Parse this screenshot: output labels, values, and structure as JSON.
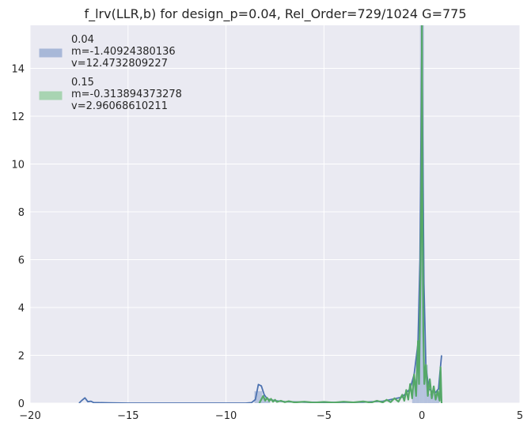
{
  "chart_data": {
    "type": "line",
    "title": "f_lrv(LLR,b) for design_p=0.04, Rel_Order=729/1024 G=775",
    "xlabel": "",
    "ylabel": "",
    "xlim": [
      -20,
      5
    ],
    "ylim": [
      0,
      15.8
    ],
    "xticks": [
      -20,
      -15,
      -10,
      -5,
      0,
      5
    ],
    "xtick_labels": [
      "−20",
      "−15",
      "−10",
      "−5",
      "0",
      "5"
    ],
    "yticks": [
      0,
      2,
      4,
      6,
      8,
      10,
      12,
      14
    ],
    "ytick_labels": [
      "0",
      "2",
      "4",
      "6",
      "8",
      "10",
      "12",
      "14"
    ],
    "grid": true,
    "legend_position": "top-left",
    "background": "#EAEAF2",
    "series": [
      {
        "name": "0.04",
        "label_lines": [
          "0.04",
          " m=-1.40924380136",
          " v=12.4732809227"
        ],
        "color": "#4C72B0",
        "patch_color": "#A8B8D8",
        "line_points": [
          [
            -17.5,
            0.0
          ],
          [
            -17.35,
            0.12
          ],
          [
            -17.2,
            0.22
          ],
          [
            -17.05,
            0.06
          ],
          [
            -16.9,
            0.08
          ],
          [
            -16.75,
            0.02
          ],
          [
            -16.5,
            0.02
          ],
          [
            -16.0,
            0.01
          ],
          [
            -15.0,
            0.0
          ],
          [
            -12.0,
            0.0
          ],
          [
            -9.0,
            0.0
          ],
          [
            -8.7,
            0.02
          ],
          [
            -8.5,
            0.15
          ],
          [
            -8.35,
            0.78
          ],
          [
            -8.2,
            0.72
          ],
          [
            -8.05,
            0.35
          ],
          [
            -7.9,
            0.18
          ],
          [
            -7.5,
            0.1
          ],
          [
            -7.0,
            0.06
          ],
          [
            -6.0,
            0.04
          ],
          [
            -5.0,
            0.03
          ],
          [
            -3.0,
            0.04
          ],
          [
            -2.0,
            0.08
          ],
          [
            -1.0,
            0.25
          ],
          [
            -0.6,
            0.6
          ],
          [
            -0.4,
            1.2
          ],
          [
            -0.2,
            2.5
          ],
          [
            -0.1,
            6.0
          ],
          [
            -0.03,
            13.0
          ],
          [
            0.0,
            15.8
          ],
          [
            0.03,
            12.0
          ],
          [
            0.1,
            5.0
          ],
          [
            0.2,
            1.5
          ],
          [
            0.35,
            0.6
          ],
          [
            0.5,
            0.5
          ],
          [
            0.7,
            0.45
          ],
          [
            0.85,
            0.6
          ],
          [
            0.92,
            1.3
          ],
          [
            1.0,
            2.0
          ]
        ],
        "bars": [
          [
            -8.45,
            0.5
          ],
          [
            -8.25,
            0.5
          ],
          [
            -8.05,
            0.2
          ],
          [
            -7.85,
            0.1
          ],
          [
            -0.4,
            1.0
          ],
          [
            -0.2,
            2.0
          ],
          [
            0.0,
            15.8
          ],
          [
            0.2,
            1.6
          ],
          [
            0.4,
            0.4
          ],
          [
            0.6,
            0.5
          ],
          [
            0.8,
            0.5
          ]
        ]
      },
      {
        "name": "0.15",
        "label_lines": [
          "0.15",
          " m=-0.313894373278",
          " v=2.96068610211"
        ],
        "color": "#55A868",
        "patch_color": "#A8D4B2",
        "line_points": [
          [
            -8.3,
            0.0
          ],
          [
            -8.1,
            0.3
          ],
          [
            -8.0,
            0.1
          ],
          [
            -7.9,
            0.22
          ],
          [
            -7.8,
            0.08
          ],
          [
            -7.7,
            0.18
          ],
          [
            -7.6,
            0.06
          ],
          [
            -7.5,
            0.14
          ],
          [
            -7.4,
            0.05
          ],
          [
            -7.2,
            0.1
          ],
          [
            -7.0,
            0.04
          ],
          [
            -6.8,
            0.08
          ],
          [
            -6.5,
            0.03
          ],
          [
            -6.0,
            0.06
          ],
          [
            -5.5,
            0.02
          ],
          [
            -5.0,
            0.05
          ],
          [
            -4.5,
            0.02
          ],
          [
            -4.0,
            0.06
          ],
          [
            -3.5,
            0.03
          ],
          [
            -3.0,
            0.07
          ],
          [
            -2.6,
            0.02
          ],
          [
            -2.3,
            0.1
          ],
          [
            -2.0,
            0.03
          ],
          [
            -1.8,
            0.14
          ],
          [
            -1.6,
            0.04
          ],
          [
            -1.4,
            0.2
          ],
          [
            -1.2,
            0.06
          ],
          [
            -1.0,
            0.35
          ],
          [
            -0.9,
            0.1
          ],
          [
            -0.8,
            0.55
          ],
          [
            -0.7,
            0.15
          ],
          [
            -0.6,
            0.8
          ],
          [
            -0.5,
            0.2
          ],
          [
            -0.4,
            1.2
          ],
          [
            -0.3,
            0.3
          ],
          [
            -0.2,
            2.6
          ],
          [
            -0.15,
            0.8
          ],
          [
            -0.07,
            5.5
          ],
          [
            -0.02,
            10.0
          ],
          [
            0.0,
            15.8
          ],
          [
            0.02,
            9.0
          ],
          [
            0.07,
            3.0
          ],
          [
            0.12,
            0.8
          ],
          [
            0.2,
            1.6
          ],
          [
            0.3,
            0.3
          ],
          [
            0.4,
            1.0
          ],
          [
            0.5,
            0.2
          ],
          [
            0.6,
            0.7
          ],
          [
            0.7,
            0.15
          ],
          [
            0.8,
            0.5
          ],
          [
            0.9,
            0.1
          ],
          [
            0.95,
            1.5
          ],
          [
            1.0,
            0.0
          ]
        ]
      }
    ]
  }
}
